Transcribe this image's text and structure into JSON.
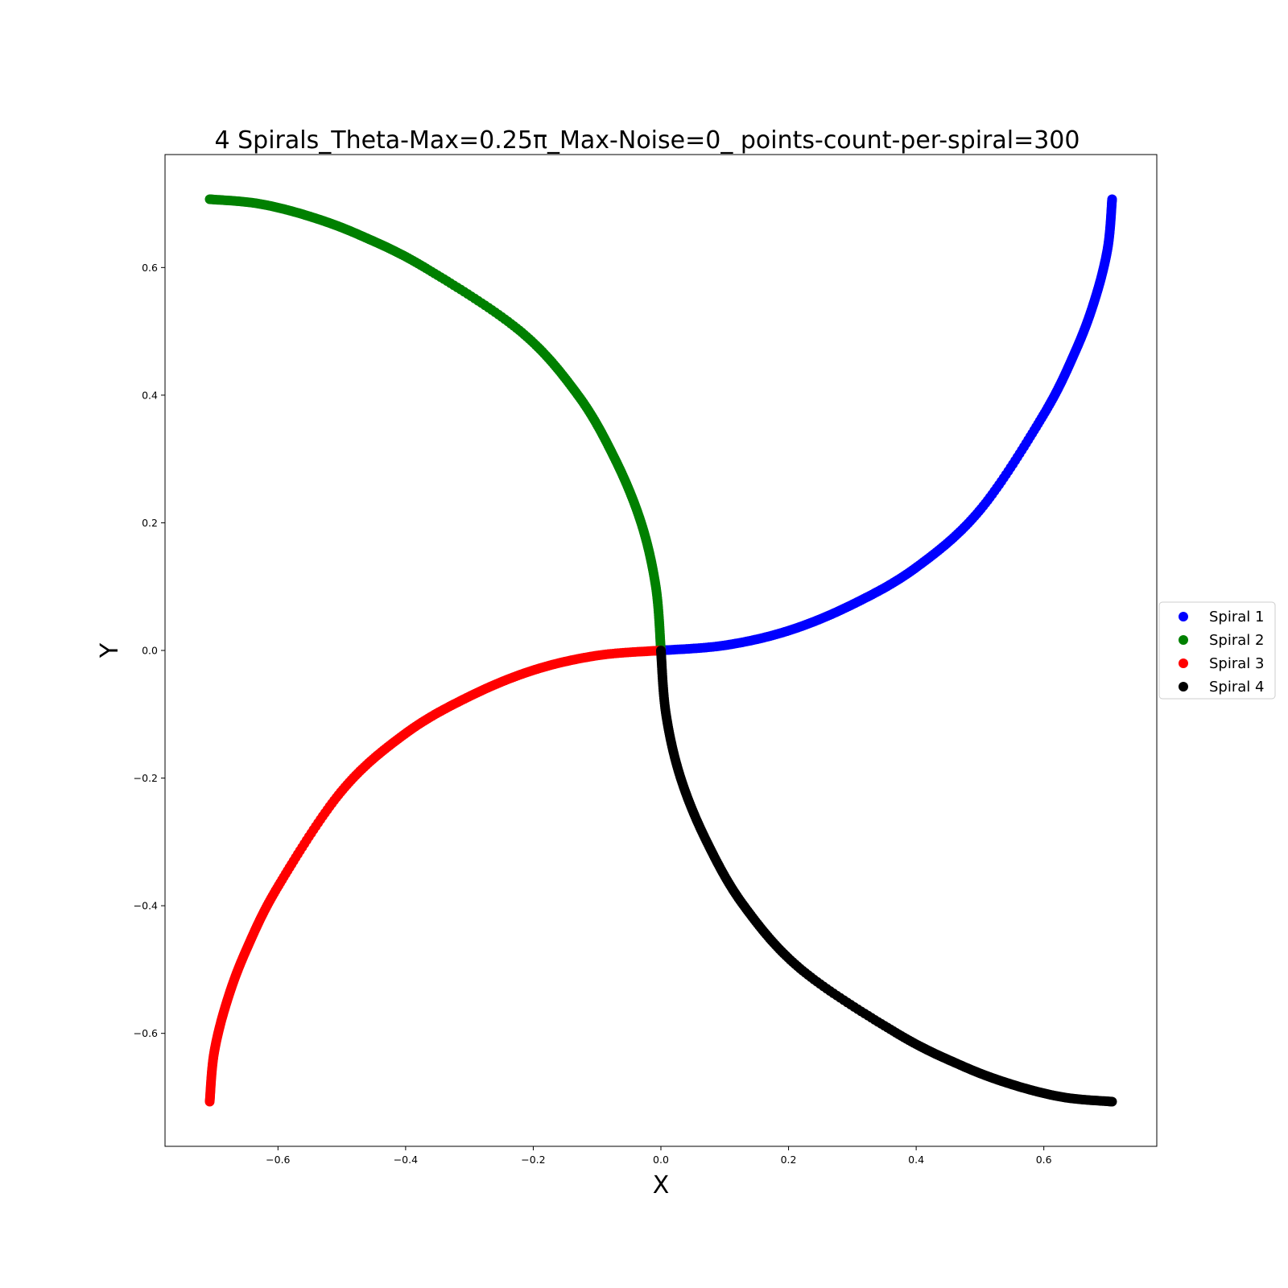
{
  "chart_data": {
    "type": "scatter",
    "title": "4 Spirals_Theta-Max=0.25π_Max-Noise=0_ points-count-per-spiral=300",
    "xlabel": "X",
    "ylabel": "Y",
    "xlim": [
      -0.777,
      0.777
    ],
    "ylim": [
      -0.777,
      0.777
    ],
    "xticks": [
      -0.6,
      -0.4,
      -0.2,
      0.0,
      0.2,
      0.4,
      0.6
    ],
    "yticks": [
      -0.6,
      -0.4,
      -0.2,
      0.0,
      0.2,
      0.4,
      0.6
    ],
    "xtick_labels": [
      "−0.6",
      "−0.4",
      "−0.2",
      "0.0",
      "0.2",
      "0.4",
      "0.6"
    ],
    "ytick_labels": [
      "−0.6",
      "−0.4",
      "−0.2",
      "0.0",
      "0.2",
      "0.4",
      "0.6"
    ],
    "grid": false,
    "legend_position": "center-right outside",
    "points_per_series": 300,
    "theta_max_pi": 0.25,
    "series": [
      {
        "name": "Spiral 1",
        "color": "#0000ff",
        "rotation_deg": 0,
        "points": [
          [
            0.0,
            0.0
          ],
          [
            0.1,
            0.008
          ],
          [
            0.2,
            0.031
          ],
          [
            0.3,
            0.072
          ],
          [
            0.4,
            0.13
          ],
          [
            0.5,
            0.22
          ],
          [
            0.6,
            0.37
          ],
          [
            0.65,
            0.47
          ],
          [
            0.68,
            0.55
          ],
          [
            0.7,
            0.63
          ],
          [
            0.707,
            0.707
          ]
        ]
      },
      {
        "name": "Spiral 2",
        "color": "#008000",
        "rotation_deg": 90,
        "points": [
          [
            0.0,
            0.0
          ],
          [
            -0.008,
            0.1
          ],
          [
            -0.031,
            0.2
          ],
          [
            -0.072,
            0.3
          ],
          [
            -0.13,
            0.4
          ],
          [
            -0.22,
            0.5
          ],
          [
            -0.37,
            0.6
          ],
          [
            -0.47,
            0.65
          ],
          [
            -0.55,
            0.68
          ],
          [
            -0.63,
            0.7
          ],
          [
            -0.707,
            0.707
          ]
        ]
      },
      {
        "name": "Spiral 3",
        "color": "#ff0000",
        "rotation_deg": 180,
        "points": [
          [
            0.0,
            0.0
          ],
          [
            -0.1,
            -0.008
          ],
          [
            -0.2,
            -0.031
          ],
          [
            -0.3,
            -0.072
          ],
          [
            -0.4,
            -0.13
          ],
          [
            -0.5,
            -0.22
          ],
          [
            -0.6,
            -0.37
          ],
          [
            -0.65,
            -0.47
          ],
          [
            -0.68,
            -0.55
          ],
          [
            -0.7,
            -0.63
          ],
          [
            -0.707,
            -0.707
          ]
        ]
      },
      {
        "name": "Spiral 4",
        "color": "#000000",
        "rotation_deg": 270,
        "points": [
          [
            0.0,
            0.0
          ],
          [
            0.008,
            -0.1
          ],
          [
            0.031,
            -0.2
          ],
          [
            0.072,
            -0.3
          ],
          [
            0.13,
            -0.4
          ],
          [
            0.22,
            -0.5
          ],
          [
            0.37,
            -0.6
          ],
          [
            0.47,
            -0.65
          ],
          [
            0.55,
            -0.68
          ],
          [
            0.63,
            -0.7
          ],
          [
            0.707,
            -0.707
          ]
        ]
      }
    ]
  }
}
